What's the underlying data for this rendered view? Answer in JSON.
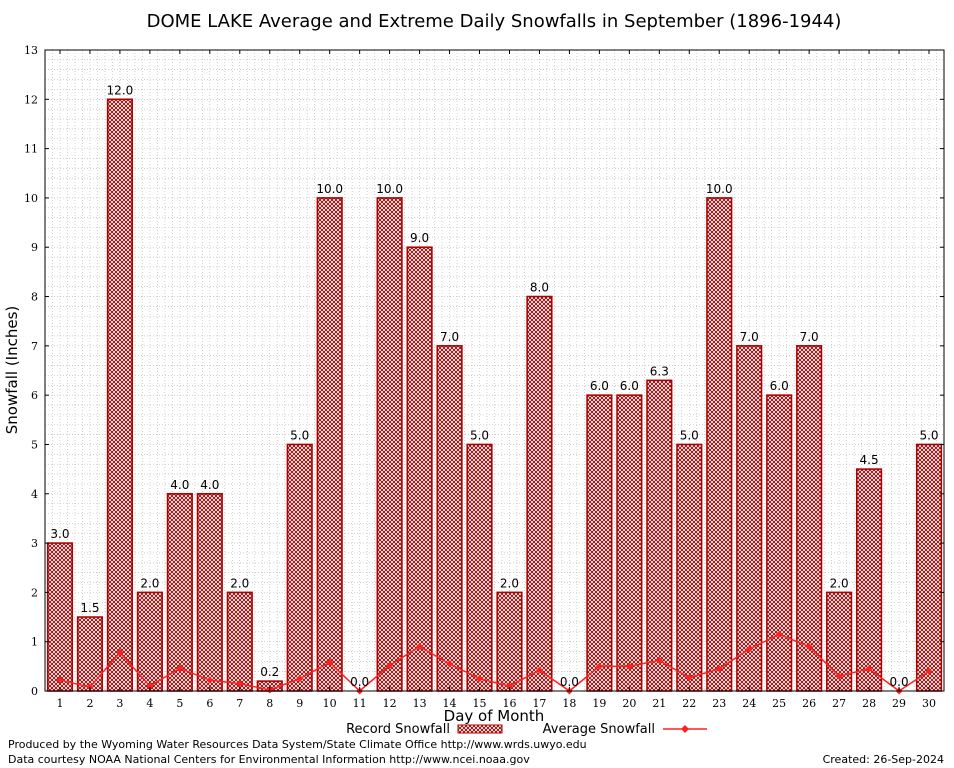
{
  "chart_data": {
    "type": "bar",
    "title": "DOME LAKE Average and Extreme Daily Snowfalls in September (1896-1944)",
    "xlabel": "Day of Month",
    "ylabel": "Snowfall (Inches)",
    "ylim": [
      0,
      13
    ],
    "yticks": [
      "0",
      "1",
      "2",
      "3",
      "4",
      "5",
      "6",
      "7",
      "8",
      "9",
      "10",
      "11",
      "12",
      "13"
    ],
    "categories": [
      "1",
      "2",
      "3",
      "4",
      "5",
      "6",
      "7",
      "8",
      "9",
      "10",
      "11",
      "12",
      "13",
      "14",
      "15",
      "16",
      "17",
      "18",
      "19",
      "20",
      "21",
      "22",
      "23",
      "24",
      "25",
      "26",
      "27",
      "28",
      "29",
      "30"
    ],
    "grid": true,
    "legend_position": "bottom",
    "series": [
      {
        "name": "Record Snowfall",
        "kind": "bar",
        "color": "#b00000",
        "values": [
          3.0,
          1.5,
          12.0,
          2.0,
          4.0,
          4.0,
          2.0,
          0.2,
          5.0,
          10.0,
          0.0,
          10.0,
          9.0,
          7.0,
          5.0,
          2.0,
          8.0,
          0.0,
          6.0,
          6.0,
          6.3,
          5.0,
          10.0,
          7.0,
          6.0,
          7.0,
          2.0,
          4.5,
          0.0,
          5.0
        ],
        "labels": [
          "3.0",
          "1.5",
          "12.0",
          "2.0",
          "4.0",
          "4.0",
          "2.0",
          "0.2",
          "5.0",
          "10.0",
          "0.0",
          "10.0",
          "9.0",
          "7.0",
          "5.0",
          "2.0",
          "8.0",
          "0.0",
          "6.0",
          "6.0",
          "6.3",
          "5.0",
          "10.0",
          "7.0",
          "6.0",
          "7.0",
          "2.0",
          "4.5",
          "0.0",
          "5.0"
        ]
      },
      {
        "name": "Average Snowfall",
        "kind": "line",
        "color": "#ff2020",
        "values": [
          0.22,
          0.08,
          0.78,
          0.1,
          0.46,
          0.22,
          0.15,
          0.02,
          0.25,
          0.58,
          0.0,
          0.52,
          0.9,
          0.55,
          0.25,
          0.1,
          0.42,
          0.0,
          0.5,
          0.5,
          0.62,
          0.27,
          0.45,
          0.85,
          1.15,
          0.9,
          0.3,
          0.45,
          0.0,
          0.4
        ]
      }
    ]
  },
  "footer": {
    "left_line1": "Produced by the Wyoming Water Resources Data System/State Climate Office http://www.wrds.uwyo.edu",
    "left_line2": "Data courtesy NOAA National Centers for Environmental Information http://www.ncei.noaa.gov",
    "created": "Created:  26-Sep-2024"
  }
}
